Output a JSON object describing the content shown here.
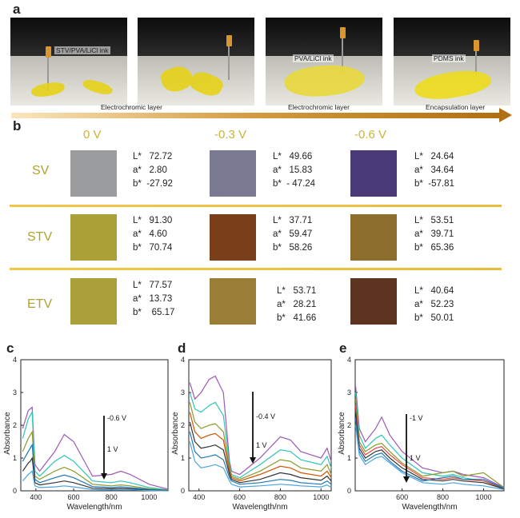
{
  "panels": {
    "a": "a",
    "b": "b",
    "c": "c",
    "d": "d",
    "e": "e"
  },
  "panel_a": {
    "ink_labels": [
      "STV/PVA/LiCl ink",
      "PVA/LiCl ink",
      "PDMS ink"
    ],
    "step_labels": [
      "Electrochromic layer",
      "Electrochromic layer",
      "Encapsulation layer"
    ]
  },
  "panel_b": {
    "voltages": [
      "0 V",
      "-0.3 V",
      "-0.6 V"
    ],
    "rows": [
      {
        "label": "SV",
        "cells": [
          {
            "color": "#9a9c9d",
            "text": "L*   72.72\na*   2.80\nb*  -27.92"
          },
          {
            "color": "#7a7a92",
            "text": "L*   49.66\na*   15.83\nb*  - 47.24"
          },
          {
            "color": "#4a3a78",
            "text": "L*   24.64\na*   34.64\nb*  -57.81"
          }
        ]
      },
      {
        "label": "STV",
        "cells": [
          {
            "color": "#a9a037",
            "text": "L*   91.30\na*   4.60\nb*   70.74"
          },
          {
            "color": "#7a3e18",
            "text": "L*   37.71\na*   59.47\nb*   58.26"
          },
          {
            "color": "#8c6d2c",
            "text": "L*   53.51\na*   39.71\nb*   65.36"
          }
        ]
      },
      {
        "label": "ETV",
        "cells": [
          {
            "color": "#aaa03a",
            "text": "L*   77.57\na*   13.73\nb*    65.17"
          },
          {
            "color": "#9b7e35",
            "text": "L*   53.71\na*   28.21\nb*   41.66"
          },
          {
            "color": "#5d3420",
            "text": "L*   40.64\na*   52.23\nb*   50.01"
          }
        ]
      }
    ]
  },
  "chart_data": [
    {
      "type": "line",
      "panel": "c",
      "xlabel": "Wavelength/nm",
      "ylabel": "Absorbance",
      "xlim": [
        320,
        1100
      ],
      "ylim": [
        0,
        4
      ],
      "x_ticks": [
        400,
        600,
        800,
        1000
      ],
      "y_ticks": [
        0,
        1,
        2,
        3,
        4
      ],
      "annotations": [
        "-0.6 V",
        "1 V"
      ],
      "series": [
        {
          "color": "#9b59b6",
          "x": [
            330,
            360,
            370,
            380,
            395,
            420,
            500,
            550,
            600,
            700,
            800,
            850,
            900,
            1000,
            1100
          ],
          "y": [
            1.9,
            2.45,
            2.5,
            2.55,
            0.8,
            0.6,
            1.2,
            1.72,
            1.5,
            0.45,
            0.5,
            0.6,
            0.5,
            0.2,
            0.05
          ]
        },
        {
          "color": "#2ec4b6",
          "x": [
            330,
            360,
            370,
            380,
            395,
            420,
            500,
            550,
            600,
            700,
            800,
            850,
            900,
            1000,
            1100
          ],
          "y": [
            1.6,
            2.2,
            2.3,
            2.4,
            0.6,
            0.45,
            0.9,
            1.08,
            0.9,
            0.3,
            0.25,
            0.3,
            0.25,
            0.1,
            0.03
          ]
        },
        {
          "color": "#8a9a2a",
          "x": [
            330,
            360,
            370,
            380,
            395,
            420,
            500,
            550,
            600,
            700,
            800,
            850,
            900,
            1000,
            1100
          ],
          "y": [
            1.2,
            1.6,
            1.7,
            1.8,
            0.45,
            0.35,
            0.6,
            0.72,
            0.6,
            0.2,
            0.15,
            0.18,
            0.15,
            0.06,
            0.02
          ]
        },
        {
          "color": "#1f77b4",
          "x": [
            330,
            360,
            370,
            380,
            395,
            420,
            500,
            550,
            600,
            700,
            800,
            850,
            900,
            1000,
            1100
          ],
          "y": [
            0.9,
            1.2,
            1.3,
            1.4,
            0.35,
            0.25,
            0.4,
            0.48,
            0.4,
            0.13,
            0.1,
            0.12,
            0.1,
            0.04,
            0.01
          ]
        },
        {
          "color": "#333333",
          "x": [
            330,
            360,
            370,
            380,
            395,
            420,
            500,
            550,
            600,
            700,
            800,
            850,
            900,
            1000,
            1100
          ],
          "y": [
            0.6,
            0.85,
            0.9,
            1.0,
            0.25,
            0.18,
            0.25,
            0.3,
            0.25,
            0.08,
            0.06,
            0.07,
            0.06,
            0.02,
            0.01
          ]
        },
        {
          "color": "#4aa3df",
          "x": [
            330,
            360,
            370,
            380,
            395,
            420,
            500,
            550,
            600,
            700,
            800,
            850,
            900,
            1000,
            1100
          ],
          "y": [
            0.3,
            0.5,
            0.55,
            0.6,
            0.15,
            0.1,
            0.12,
            0.15,
            0.12,
            0.04,
            0.03,
            0.03,
            0.03,
            0.01,
            0.0
          ]
        }
      ]
    },
    {
      "type": "line",
      "panel": "d",
      "xlabel": "Wavelength/nm",
      "ylabel": "Absorbance",
      "xlim": [
        350,
        1050
      ],
      "ylim": [
        0,
        4
      ],
      "x_ticks": [
        400,
        600,
        800,
        1000
      ],
      "y_ticks": [
        0,
        1,
        2,
        3,
        4
      ],
      "annotations": [
        "-0.4 V",
        "1 V"
      ],
      "series": [
        {
          "color": "#9b59b6",
          "x": [
            355,
            380,
            410,
            450,
            480,
            520,
            550,
            560,
            600,
            700,
            800,
            850,
            900,
            1000,
            1030,
            1050
          ],
          "y": [
            3.3,
            2.8,
            3.0,
            3.4,
            3.5,
            3.0,
            0.9,
            0.6,
            0.5,
            1.0,
            1.65,
            1.55,
            1.2,
            1.0,
            1.3,
            0.9
          ]
        },
        {
          "color": "#2ec4b6",
          "x": [
            355,
            380,
            410,
            450,
            480,
            520,
            550,
            560,
            600,
            700,
            800,
            850,
            900,
            1000,
            1030,
            1050
          ],
          "y": [
            3.0,
            2.5,
            2.4,
            2.6,
            2.7,
            2.3,
            0.8,
            0.5,
            0.4,
            0.8,
            1.25,
            1.2,
            0.95,
            0.8,
            1.05,
            0.7
          ]
        },
        {
          "color": "#8a9a2a",
          "x": [
            355,
            380,
            410,
            450,
            480,
            520,
            550,
            560,
            600,
            700,
            800,
            850,
            900,
            1000,
            1030,
            1050
          ],
          "y": [
            2.7,
            2.1,
            1.9,
            2.0,
            2.05,
            1.8,
            0.7,
            0.45,
            0.35,
            0.6,
            0.95,
            0.9,
            0.7,
            0.6,
            0.8,
            0.5
          ]
        },
        {
          "color": "#d35400",
          "x": [
            355,
            380,
            410,
            450,
            480,
            520,
            550,
            560,
            600,
            700,
            800,
            850,
            900,
            1000,
            1030,
            1050
          ],
          "y": [
            2.4,
            1.8,
            1.6,
            1.7,
            1.75,
            1.55,
            0.6,
            0.4,
            0.3,
            0.5,
            0.75,
            0.7,
            0.55,
            0.45,
            0.6,
            0.4
          ]
        },
        {
          "color": "#333333",
          "x": [
            355,
            380,
            410,
            450,
            480,
            520,
            550,
            560,
            600,
            700,
            800,
            850,
            900,
            1000,
            1030,
            1050
          ],
          "y": [
            2.1,
            1.5,
            1.3,
            1.35,
            1.4,
            1.25,
            0.5,
            0.35,
            0.25,
            0.35,
            0.55,
            0.5,
            0.4,
            0.32,
            0.45,
            0.3
          ]
        },
        {
          "color": "#1f77b4",
          "x": [
            355,
            380,
            410,
            450,
            480,
            520,
            550,
            560,
            600,
            700,
            800,
            850,
            900,
            1000,
            1030,
            1050
          ],
          "y": [
            1.8,
            1.2,
            1.0,
            1.05,
            1.1,
            0.95,
            0.4,
            0.3,
            0.2,
            0.25,
            0.35,
            0.32,
            0.25,
            0.2,
            0.3,
            0.2
          ]
        },
        {
          "color": "#4aa3df",
          "x": [
            355,
            380,
            410,
            450,
            480,
            520,
            550,
            560,
            600,
            700,
            800,
            850,
            900,
            1000,
            1030,
            1050
          ],
          "y": [
            1.5,
            0.9,
            0.7,
            0.75,
            0.8,
            0.7,
            0.3,
            0.2,
            0.12,
            0.15,
            0.2,
            0.18,
            0.15,
            0.12,
            0.18,
            0.1
          ]
        }
      ]
    },
    {
      "type": "line",
      "panel": "e",
      "xlabel": "Wavelength/nm",
      "ylabel": "Absorbance",
      "xlim": [
        370,
        1100
      ],
      "ylim": [
        0,
        4
      ],
      "x_ticks": [
        600,
        800,
        1000
      ],
      "y_ticks": [
        0,
        1,
        2,
        3,
        4
      ],
      "annotations": [
        "-1 V",
        "1 V"
      ],
      "series": [
        {
          "color": "#9b59b6",
          "x": [
            372,
            390,
            420,
            470,
            500,
            540,
            600,
            700,
            800,
            850,
            900,
            1000,
            1100
          ],
          "y": [
            3.2,
            1.9,
            1.5,
            1.9,
            2.25,
            1.7,
            1.2,
            0.7,
            0.55,
            0.6,
            0.5,
            0.4,
            0.1
          ]
        },
        {
          "color": "#2ec4b6",
          "x": [
            372,
            390,
            420,
            470,
            500,
            540,
            600,
            700,
            800,
            850,
            900,
            1000,
            1100
          ],
          "y": [
            3.0,
            1.7,
            1.3,
            1.6,
            1.7,
            1.4,
            1.0,
            0.55,
            0.45,
            0.5,
            0.4,
            0.3,
            0.08
          ]
        },
        {
          "color": "#8a9a2a",
          "x": [
            372,
            390,
            420,
            470,
            500,
            540,
            600,
            700,
            800,
            850,
            900,
            1000,
            1100
          ],
          "y": [
            2.8,
            1.5,
            1.2,
            1.4,
            1.45,
            1.2,
            0.85,
            0.45,
            0.55,
            0.6,
            0.45,
            0.55,
            0.1
          ]
        },
        {
          "color": "#e74c3c",
          "x": [
            372,
            390,
            420,
            470,
            500,
            540,
            600,
            700,
            800,
            850,
            900,
            1000,
            1100
          ],
          "y": [
            2.6,
            1.4,
            1.1,
            1.3,
            1.35,
            1.1,
            0.8,
            0.4,
            0.35,
            0.4,
            0.35,
            0.3,
            0.07
          ]
        },
        {
          "color": "#333333",
          "x": [
            372,
            390,
            420,
            470,
            500,
            540,
            600,
            700,
            800,
            850,
            900,
            1000,
            1100
          ],
          "y": [
            2.4,
            1.3,
            1.0,
            1.2,
            1.25,
            1.0,
            0.7,
            0.35,
            0.3,
            0.35,
            0.3,
            0.25,
            0.06
          ]
        },
        {
          "color": "#1f77b4",
          "x": [
            372,
            390,
            420,
            470,
            500,
            540,
            600,
            700,
            800,
            850,
            900,
            1000,
            1100
          ],
          "y": [
            2.2,
            1.2,
            0.9,
            1.1,
            1.15,
            0.9,
            0.6,
            0.3,
            0.4,
            0.45,
            0.35,
            0.35,
            0.08
          ]
        },
        {
          "color": "#4aa3df",
          "x": [
            372,
            390,
            420,
            470,
            500,
            540,
            600,
            700,
            800,
            850,
            900,
            1000,
            1100
          ],
          "y": [
            2.0,
            1.1,
            0.8,
            1.0,
            1.05,
            0.85,
            0.55,
            0.25,
            0.2,
            0.25,
            0.2,
            0.15,
            0.04
          ]
        }
      ]
    }
  ]
}
